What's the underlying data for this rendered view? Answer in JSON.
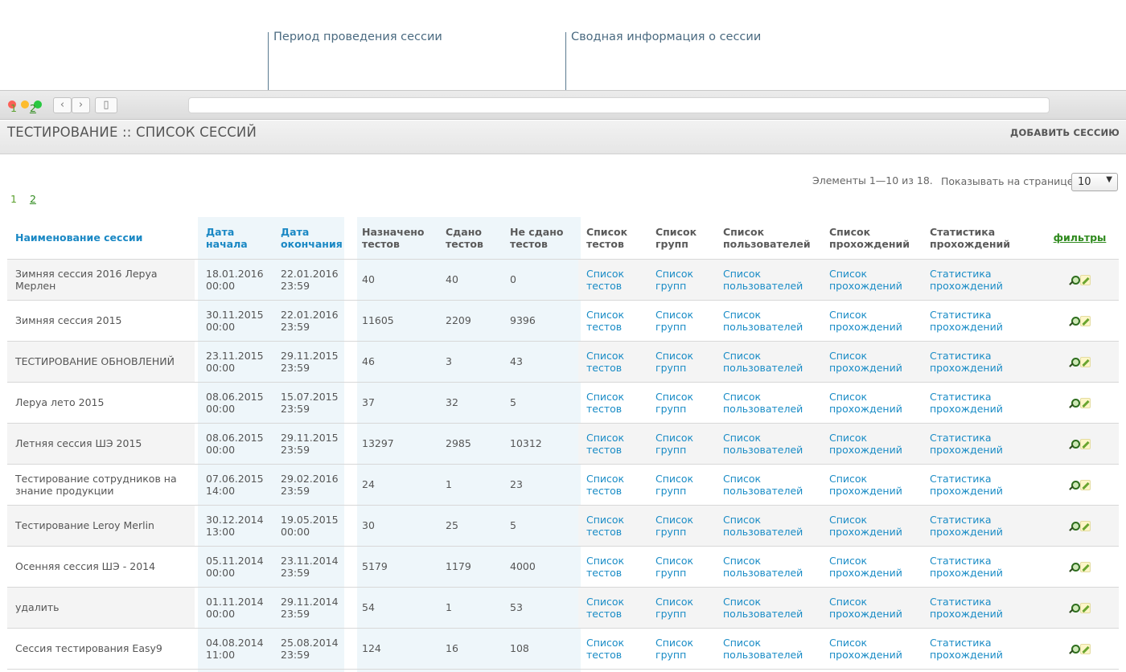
{
  "callouts": {
    "period": "Период проведения сессии",
    "summary": "Сводная информация о сессии"
  },
  "page": {
    "title": "ТЕСТИРОВАНИЕ :: СПИСОК СЕССИЙ",
    "add_button": "ДОБАВИТЬ СЕССИЮ"
  },
  "pager": {
    "current": "1",
    "next": "2"
  },
  "info": {
    "elements": "Элементы 1—10 из 18.",
    "per_page_label": "Показывать на странице:",
    "per_page_value": "10"
  },
  "columns": {
    "name": "Наименование сессии",
    "start": "Дата начала",
    "end": "Дата окончания",
    "assigned": "Назначено тестов",
    "passed": "Сдано тестов",
    "failed": "Не сдано тестов",
    "tests": "Список тестов",
    "groups": "Список групп",
    "users": "Список пользователей",
    "attempts": "Список прохождений",
    "stats": "Статистика прохождений",
    "filters": "фильтры"
  },
  "link_labels": {
    "tests": "Список тестов",
    "groups": "Список групп",
    "users": "Список пользователей",
    "attempts": "Список прохождений",
    "stats": "Статистика прохождений"
  },
  "rows": [
    {
      "name": "Зимняя сессия 2016 Леруа Мерлен",
      "start": "18.01.2016 00:00",
      "end": "22.01.2016 23:59",
      "assigned": "40",
      "passed": "40",
      "failed": "0"
    },
    {
      "name": "Зимняя сессия 2015",
      "start": "30.11.2015 00:00",
      "end": "22.01.2016 23:59",
      "assigned": "11605",
      "passed": "2209",
      "failed": "9396"
    },
    {
      "name": "ТЕСТИРОВАНИЕ ОБНОВЛЕНИЙ",
      "start": "23.11.2015 00:00",
      "end": "29.11.2015 23:59",
      "assigned": "46",
      "passed": "3",
      "failed": "43"
    },
    {
      "name": "Леруа лето 2015",
      "start": "08.06.2015 00:00",
      "end": "15.07.2015 23:59",
      "assigned": "37",
      "passed": "32",
      "failed": "5"
    },
    {
      "name": "Летняя сессия ШЭ 2015",
      "start": "08.06.2015 00:00",
      "end": "29.11.2015 23:59",
      "assigned": "13297",
      "passed": "2985",
      "failed": "10312"
    },
    {
      "name": "Тестирование сотрудников на знание продукции",
      "start": "07.06.2015 14:00",
      "end": "29.02.2016 23:59",
      "assigned": "24",
      "passed": "1",
      "failed": "23"
    },
    {
      "name": "Тестирование Leroy Merlin",
      "start": "30.12.2014 13:00",
      "end": "19.05.2015 00:00",
      "assigned": "30",
      "passed": "25",
      "failed": "5"
    },
    {
      "name": "Осенняя сессия ШЭ - 2014",
      "start": "05.11.2014 00:00",
      "end": "23.11.2014 23:59",
      "assigned": "5179",
      "passed": "1179",
      "failed": "4000"
    },
    {
      "name": "удалить",
      "start": "01.11.2014 00:00",
      "end": "29.11.2014 23:59",
      "assigned": "54",
      "passed": "1",
      "failed": "53"
    },
    {
      "name": "Сессия тестирования Easy9",
      "start": "04.08.2014 11:00",
      "end": "25.08.2014 23:59",
      "assigned": "124",
      "passed": "16",
      "failed": "108"
    }
  ]
}
